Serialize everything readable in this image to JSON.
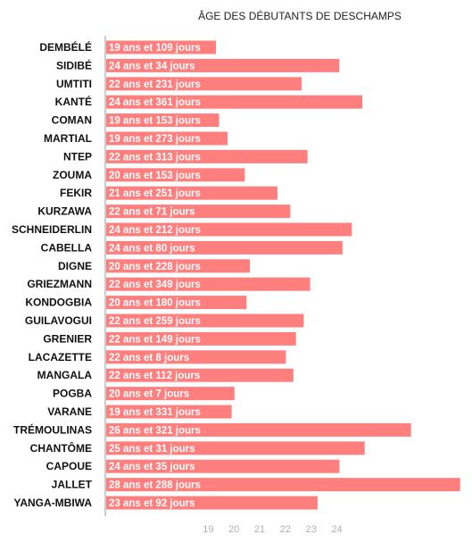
{
  "chart_data": {
    "type": "bar",
    "orientation": "horizontal",
    "title": "ÂGE DES DÉBUTANTS DE DESCHAMPS",
    "xlabel": "",
    "ylabel": "",
    "xlim": [
      15,
      28.8
    ],
    "x_ticks": [
      19,
      20,
      21,
      22,
      23,
      24
    ],
    "grid": false,
    "bar_color": "#ff7f7f",
    "categories": [
      "DEMBÉLÉ",
      "SIDIBÉ",
      "UMTITI",
      "KANTÉ",
      "COMAN",
      "MARTIAL",
      "NTEP",
      "ZOUMA",
      "FEKIR",
      "KURZAWA",
      "SCHNEIDERLIN",
      "CABELLA",
      "DIGNE",
      "GRIEZMANN",
      "KONDOGBIA",
      "GUILAVOGUI",
      "GRENIER",
      "LACAZETTE",
      "MANGALA",
      "POGBA",
      "VARANE",
      "TRÉMOULINAS",
      "CHANTÔME",
      "CAPOUE",
      "JALLET",
      "YANGA-MBIWA"
    ],
    "values": [
      19.3,
      24.09,
      22.63,
      24.99,
      19.42,
      19.75,
      22.86,
      20.42,
      21.69,
      22.19,
      24.58,
      24.22,
      20.62,
      22.96,
      20.49,
      22.71,
      22.41,
      22.02,
      22.31,
      20.02,
      19.91,
      26.88,
      25.08,
      24.1,
      28.79,
      23.25
    ],
    "labels": [
      "19 ans et 109 jours",
      "24 ans et 34 jours",
      "22 ans et 231 jours",
      "24 ans et 361 jours",
      "19 ans et 153 jours",
      "19 ans et 273 jours",
      "22 ans et 313 jours",
      "20 ans et 153 jours",
      "21 ans et 251 jours",
      "22 ans et 71 jours",
      "24 ans et 212 jours",
      "24 ans et 80 jours",
      "20 ans et 228 jours",
      "22 ans et 349 jours",
      "20 ans et 180 jours",
      "22 ans et 259 jours",
      "22 ans et 149 jours",
      "22 ans et 8 jours",
      "22 ans et 112 jours",
      "20 ans et 7 jours",
      "19 ans et 331 jours",
      "26 ans et 321 jours",
      "25 ans et 31 jours",
      "24 ans et 35 jours",
      "28 ans et 288 jours",
      "23 ans et 92 jours"
    ]
  }
}
